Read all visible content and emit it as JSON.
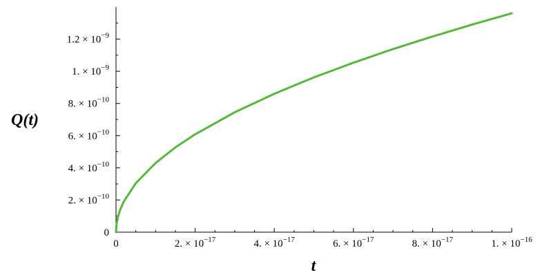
{
  "chart_data": {
    "type": "line",
    "title": "",
    "xlabel": "t",
    "ylabel": "Q(t)",
    "xlim": [
      0,
      1e-16
    ],
    "ylim": [
      0,
      1.4e-09
    ],
    "grid": false,
    "x_ticks": [
      {
        "value": 0,
        "mantissa": "0",
        "exp": ""
      },
      {
        "value": 2e-17,
        "mantissa": "2. × 10",
        "exp": "−17"
      },
      {
        "value": 4e-17,
        "mantissa": "4. × 10",
        "exp": "−17"
      },
      {
        "value": 6e-17,
        "mantissa": "6. × 10",
        "exp": "−17"
      },
      {
        "value": 8e-17,
        "mantissa": "8. × 10",
        "exp": "−17"
      },
      {
        "value": 1e-16,
        "mantissa": "1. × 10",
        "exp": "−16"
      }
    ],
    "y_ticks": [
      {
        "value": 0,
        "mantissa": "0",
        "exp": ""
      },
      {
        "value": 2e-10,
        "mantissa": "2. × 10",
        "exp": "−10"
      },
      {
        "value": 4e-10,
        "mantissa": "4. × 10",
        "exp": "−10"
      },
      {
        "value": 6e-10,
        "mantissa": "6. × 10",
        "exp": "−10"
      },
      {
        "value": 8e-10,
        "mantissa": "8. × 10",
        "exp": "−10"
      },
      {
        "value": 1e-09,
        "mantissa": "1. × 10",
        "exp": "−9"
      },
      {
        "value": 1.2e-09,
        "mantissa": "1.2 × 10",
        "exp": "−9"
      }
    ],
    "series": [
      {
        "color": "#52b83a",
        "x": [
          0,
          1e-19,
          5e-19,
          1e-18,
          2e-18,
          5e-18,
          1e-17,
          1.5e-17,
          2e-17,
          3e-17,
          4e-17,
          5e-17,
          6e-17,
          7e-17,
          8e-17,
          9e-17,
          1e-16
        ],
        "y": [
          0,
          4.3e-11,
          9.6e-11,
          1.36e-10,
          1.92e-10,
          3.04e-10,
          4.3e-10,
          5.27e-10,
          6.08e-10,
          7.45e-10,
          8.6e-10,
          9.62e-10,
          1.053e-09,
          1.138e-09,
          1.216e-09,
          1.29e-09,
          1.36e-09
        ]
      }
    ]
  }
}
